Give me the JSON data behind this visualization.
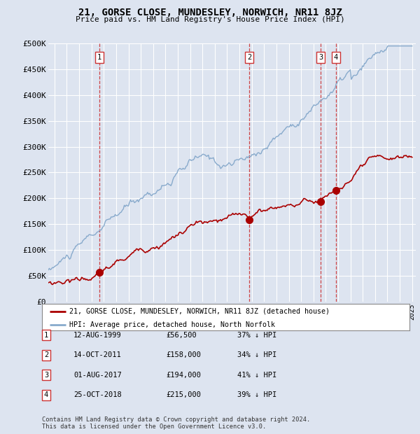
{
  "title": "21, GORSE CLOSE, MUNDESLEY, NORWICH, NR11 8JZ",
  "subtitle": "Price paid vs. HM Land Registry's House Price Index (HPI)",
  "ylim": [
    0,
    500000
  ],
  "yticks": [
    0,
    50000,
    100000,
    150000,
    200000,
    250000,
    300000,
    350000,
    400000,
    450000,
    500000
  ],
  "ytick_labels": [
    "£0",
    "£50K",
    "£100K",
    "£150K",
    "£200K",
    "£250K",
    "£300K",
    "£350K",
    "£400K",
    "£450K",
    "£500K"
  ],
  "background_color": "#dde4f0",
  "legend_label_red": "21, GORSE CLOSE, MUNDESLEY, NORWICH, NR11 8JZ (detached house)",
  "legend_label_blue": "HPI: Average price, detached house, North Norfolk",
  "transactions": [
    {
      "num": 1,
      "date": "12-AUG-1999",
      "price": 56500,
      "price_str": "£56,500",
      "pct": "37%",
      "year": 1999.62
    },
    {
      "num": 2,
      "date": "14-OCT-2011",
      "price": 158000,
      "price_str": "£158,000",
      "pct": "34%",
      "year": 2011.79
    },
    {
      "num": 3,
      "date": "01-AUG-2017",
      "price": 194000,
      "price_str": "£194,000",
      "pct": "41%",
      "year": 2017.58
    },
    {
      "num": 4,
      "date": "25-OCT-2018",
      "price": 215000,
      "price_str": "£215,000",
      "pct": "39%",
      "year": 2018.81
    }
  ],
  "footer_line1": "Contains HM Land Registry data © Crown copyright and database right 2024.",
  "footer_line2": "This data is licensed under the Open Government Licence v3.0.",
  "red_color": "#aa0000",
  "blue_color": "#88aacc",
  "vline_color": "#cc3333",
  "grid_color": "#ffffff",
  "hpi_seed": 10,
  "price_seed": 20,
  "xlim_start": 1995.5,
  "xlim_end": 2025.3
}
